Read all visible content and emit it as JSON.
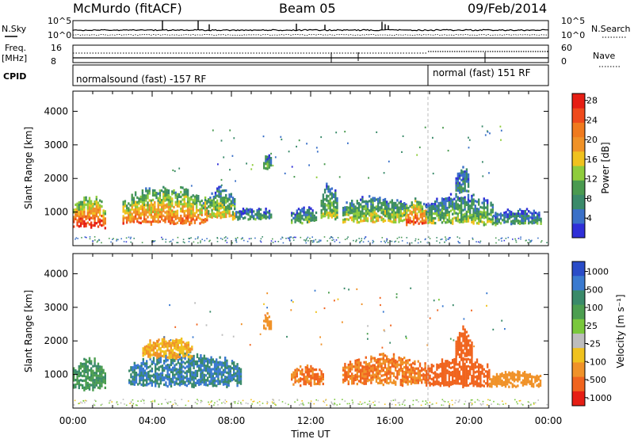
{
  "header": {
    "station": "McMurdo (fitACF)",
    "beam": "Beam 05",
    "date": "09/Feb/2014"
  },
  "strips": {
    "nsky_label": "N.Sky",
    "nsky_ticks": [
      "10^5",
      "10^0"
    ],
    "nsearch_label": "N.Search",
    "nsearch_ticks": [
      "10^5",
      "10^0"
    ],
    "freq_label": "Freq.",
    "freq_unit": "[MHz]",
    "freq_ticks": [
      "16",
      "8"
    ],
    "nave_label": "Nave",
    "nave_ticks": [
      "60",
      "0"
    ],
    "cpid_label": "CPID",
    "cpid_segments": [
      {
        "label": "normalsound (fast) -157 RF",
        "start_hour": 0,
        "end_hour": 18.0
      },
      {
        "label": "normal (fast) 151 RF",
        "start_hour": 18.0,
        "end_hour": 24
      }
    ]
  },
  "chart_data": [
    {
      "type": "heatmap",
      "quantity": "power",
      "ylabel": "Slant Range [km]",
      "xlabel": "Time UT",
      "xlim": [
        0,
        24
      ],
      "ylim": [
        0,
        4600
      ],
      "yticks": [
        1000,
        2000,
        3000,
        4000
      ],
      "colorbar": {
        "label": "Power [dB]",
        "ticks": [
          "4",
          "8",
          "12",
          "16",
          "20",
          "24",
          "28"
        ],
        "colors": [
          "#2f2fd8",
          "#3a70c8",
          "#3a8a6a",
          "#4a9a50",
          "#8fcc3c",
          "#f0c21e",
          "#f09228",
          "#f07a1e",
          "#ef4a1c",
          "#e61e14"
        ]
      },
      "echo_regions": [
        {
          "t_start": 0.0,
          "t_end": 1.6,
          "range_km": [
            550,
            1450
          ],
          "level": 24
        },
        {
          "t_start": 2.5,
          "t_end": 6.8,
          "range_km": [
            650,
            1700
          ],
          "level": 20
        },
        {
          "t_start": 6.8,
          "t_end": 8.2,
          "range_km": [
            800,
            1700
          ],
          "level": 14
        },
        {
          "t_start": 8.2,
          "t_end": 10.0,
          "range_km": [
            800,
            1150
          ],
          "level": 8
        },
        {
          "t_start": 9.6,
          "t_end": 10.0,
          "range_km": [
            2300,
            2800
          ],
          "level": 10
        },
        {
          "t_start": 11.0,
          "t_end": 12.3,
          "range_km": [
            700,
            1150
          ],
          "level": 10
        },
        {
          "t_start": 12.5,
          "t_end": 13.3,
          "range_km": [
            750,
            1900
          ],
          "level": 12
        },
        {
          "t_start": 13.6,
          "t_end": 16.8,
          "range_km": [
            700,
            1450
          ],
          "level": 14
        },
        {
          "t_start": 16.8,
          "t_end": 17.8,
          "range_km": [
            650,
            1400
          ],
          "level": 22
        },
        {
          "t_start": 17.8,
          "t_end": 21.2,
          "range_km": [
            650,
            1500
          ],
          "level": 12
        },
        {
          "t_start": 19.3,
          "t_end": 20.0,
          "range_km": [
            1600,
            2300
          ],
          "level": 8
        },
        {
          "t_start": 21.2,
          "t_end": 23.6,
          "range_km": [
            650,
            1100
          ],
          "level": 8
        }
      ]
    },
    {
      "type": "heatmap",
      "quantity": "velocity",
      "ylabel": "Slant Range [km]",
      "xlabel": "Time UT",
      "xlim": [
        0,
        24
      ],
      "ylim": [
        0,
        4600
      ],
      "yticks": [
        1000,
        2000,
        3000,
        4000
      ],
      "xticks": [
        "00:00",
        "04:00",
        "08:00",
        "12:00",
        "16:00",
        "20:00",
        "00:00"
      ],
      "colorbar": {
        "label": "Velocity [m s⁻¹]",
        "ticks": [
          "1000",
          "500",
          "100",
          "25",
          "-25",
          "-100",
          "-500",
          "-1000"
        ],
        "colors": [
          "#2a4cc8",
          "#3a7ad0",
          "#3a8a6a",
          "#4c9e50",
          "#7ac83c",
          "#bdbdbd",
          "#f0c21e",
          "#f09228",
          "#f0641e",
          "#e61e14"
        ]
      },
      "echo_regions": [
        {
          "t_start": 0.0,
          "t_end": 1.6,
          "range_km": [
            550,
            1450
          ],
          "velocity": 100
        },
        {
          "t_start": 2.8,
          "t_end": 8.5,
          "range_km": [
            650,
            1600
          ],
          "velocity": 300
        },
        {
          "t_start": 3.5,
          "t_end": 6.0,
          "range_km": [
            1500,
            2100
          ],
          "velocity": -100
        },
        {
          "t_start": 9.6,
          "t_end": 10.0,
          "range_km": [
            2300,
            2800
          ],
          "velocity": -200
        },
        {
          "t_start": 11.0,
          "t_end": 12.6,
          "range_km": [
            700,
            1250
          ],
          "velocity": -300
        },
        {
          "t_start": 13.6,
          "t_end": 17.8,
          "range_km": [
            700,
            1550
          ],
          "velocity": -300
        },
        {
          "t_start": 17.8,
          "t_end": 21.0,
          "range_km": [
            650,
            1500
          ],
          "velocity": -400
        },
        {
          "t_start": 19.3,
          "t_end": 20.1,
          "range_km": [
            1500,
            2400
          ],
          "velocity": -500
        },
        {
          "t_start": 21.0,
          "t_end": 23.6,
          "range_km": [
            650,
            1100
          ],
          "velocity": -200
        }
      ]
    }
  ]
}
